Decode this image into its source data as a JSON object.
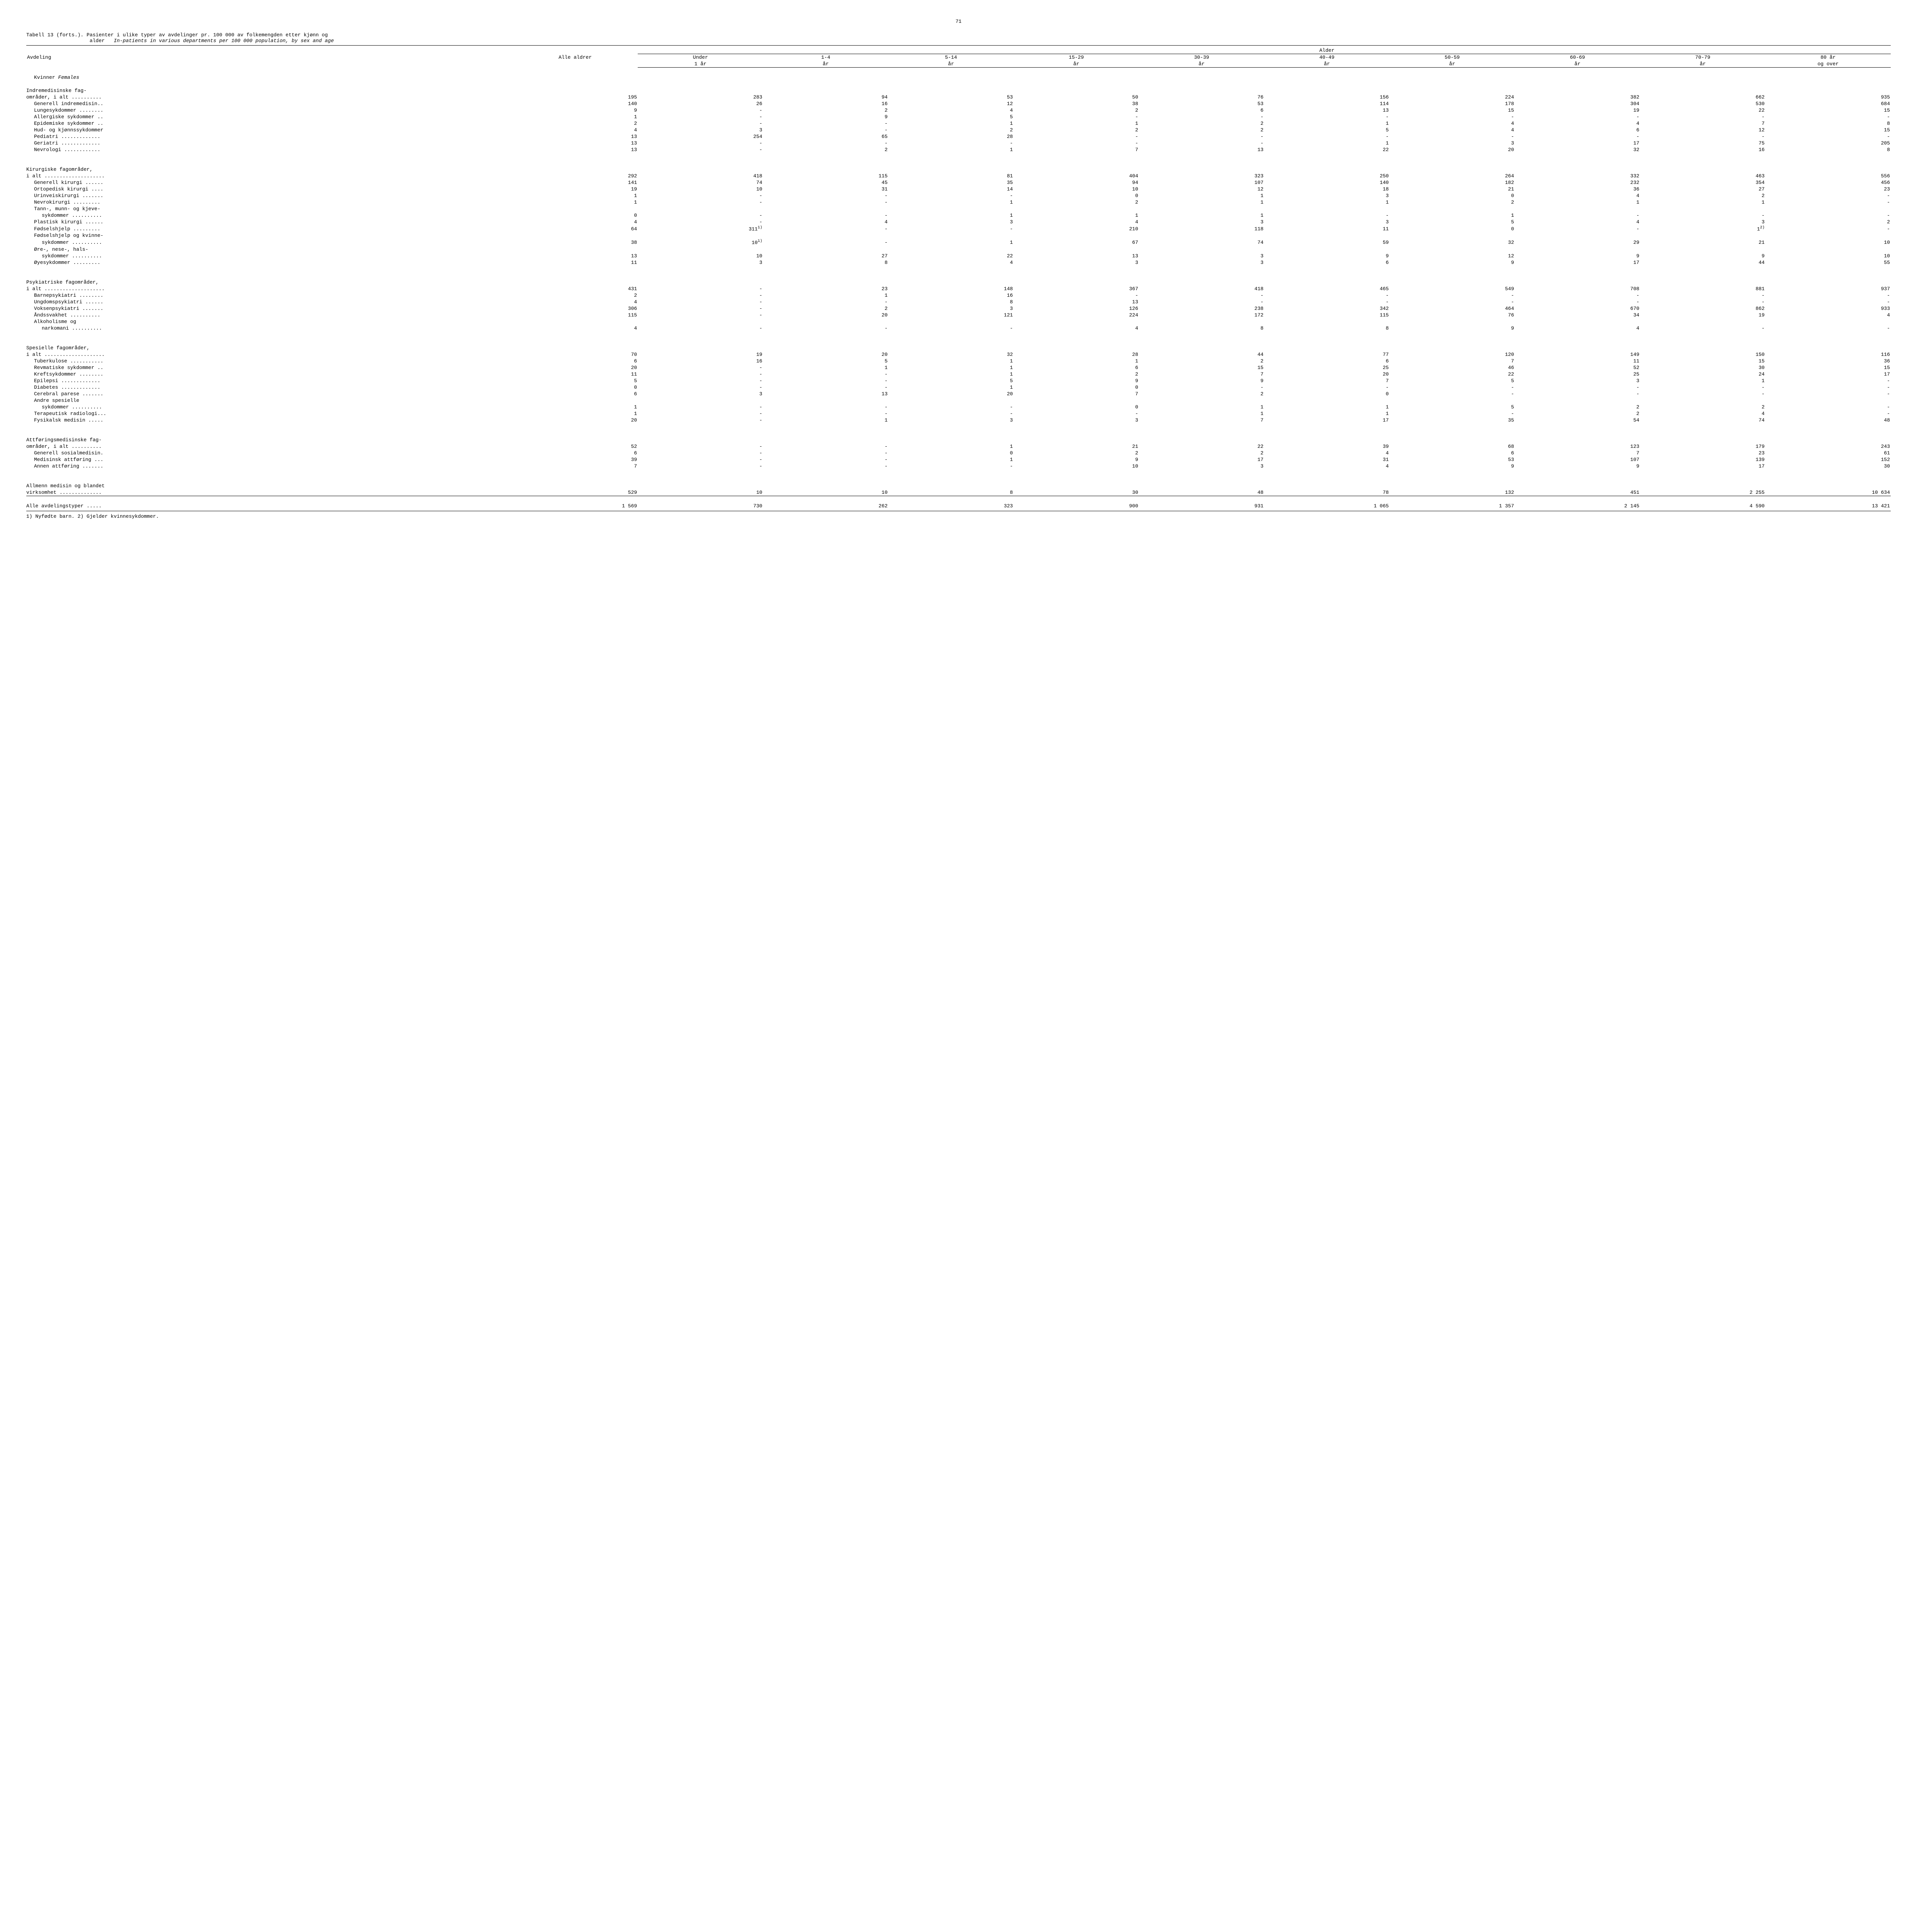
{
  "page_number": "71",
  "title_main": "Tabell 13 (forts.).  Pasienter i ulike typer av avdelinger pr. 100 000 av folkemengden etter kjønn og",
  "title_main2": "alder",
  "title_it": "In-patients in various departments per 100 000 population, by sex and age",
  "header": {
    "avdeling": "Avdeling",
    "alle_aldrer": "Alle aldrer",
    "alder": "Alder",
    "cols": [
      "Under 1 år",
      "1-4 år",
      "5-14 år",
      "15-29 år",
      "30-39 år",
      "40-49 år",
      "50-59 år",
      "60-69 år",
      "70-79 år",
      "80 år og over"
    ]
  },
  "section_female": "Kvinner",
  "section_female_it": "Females",
  "groups": [
    {
      "header_lines": [
        "Indremedisinske fag-",
        "områder, i alt .........."
      ],
      "header_values": [
        "195",
        "283",
        "94",
        "53",
        "50",
        "76",
        "156",
        "224",
        "382",
        "662",
        "935"
      ],
      "rows": [
        {
          "label": "Generell indremedisin..",
          "indent": 1,
          "v": [
            "140",
            "26",
            "16",
            "12",
            "38",
            "53",
            "114",
            "178",
            "304",
            "530",
            "684"
          ]
        },
        {
          "label": "Lungesykdommer ........",
          "indent": 1,
          "v": [
            "9",
            "-",
            "2",
            "4",
            "2",
            "6",
            "13",
            "15",
            "19",
            "22",
            "15"
          ]
        },
        {
          "label": "Allergiske sykdommer ..",
          "indent": 1,
          "v": [
            "1",
            "-",
            "9",
            "5",
            "-",
            "-",
            "-",
            "-",
            "-",
            "-",
            "-"
          ]
        },
        {
          "label": "Epidemiske sykdommer ..",
          "indent": 1,
          "v": [
            "2",
            "-",
            "-",
            "1",
            "1",
            "2",
            "1",
            "4",
            "4",
            "7",
            "8"
          ]
        },
        {
          "label": "Hud- og kjønnssykdommer",
          "indent": 1,
          "v": [
            "4",
            "3",
            "-",
            "2",
            "2",
            "2",
            "5",
            "4",
            "6",
            "12",
            "15"
          ]
        },
        {
          "label": "Pediatri .............",
          "indent": 1,
          "v": [
            "13",
            "254",
            "65",
            "28",
            "-",
            "-",
            "-",
            "-",
            "-",
            "-",
            "-"
          ]
        },
        {
          "label": "Geriatri .............",
          "indent": 1,
          "v": [
            "13",
            "-",
            "-",
            "-",
            "-",
            "-",
            "1",
            "3",
            "17",
            "75",
            "205"
          ]
        },
        {
          "label": "Nevrologi ............",
          "indent": 1,
          "v": [
            "13",
            "-",
            "2",
            "1",
            "7",
            "13",
            "22",
            "20",
            "32",
            "16",
            "8"
          ]
        }
      ]
    },
    {
      "header_lines": [
        "Kirurgiske fagområder,",
        "i alt ...................."
      ],
      "header_values": [
        "292",
        "418",
        "115",
        "81",
        "404",
        "323",
        "250",
        "264",
        "332",
        "463",
        "556"
      ],
      "rows": [
        {
          "label": "Generell kirurgi ......",
          "indent": 1,
          "v": [
            "141",
            "74",
            "45",
            "35",
            "94",
            "107",
            "140",
            "182",
            "232",
            "354",
            "456"
          ]
        },
        {
          "label": "Ortopedisk kirurgi ....",
          "indent": 1,
          "v": [
            "19",
            "10",
            "31",
            "14",
            "10",
            "12",
            "18",
            "21",
            "36",
            "27",
            "23"
          ]
        },
        {
          "label": "Urinveiskirurgi .......",
          "indent": 1,
          "v": [
            "1",
            "-",
            "-",
            "-",
            "0",
            "1",
            "3",
            "0",
            "4",
            "2",
            "-"
          ]
        },
        {
          "label": "Nevrokirurgi .........",
          "indent": 1,
          "v": [
            "1",
            "-",
            "-",
            "1",
            "2",
            "1",
            "1",
            "2",
            "1",
            "1",
            "-"
          ]
        },
        {
          "label": "Tann-, munn- og kjeve-",
          "indent": 1,
          "v": [
            "",
            "",
            "",
            "",
            "",
            "",
            "",
            "",
            "",
            "",
            ""
          ]
        },
        {
          "label": "sykdommer ..........",
          "indent": 2,
          "v": [
            "0",
            "-",
            "-",
            "1",
            "1",
            "1",
            "-",
            "1",
            "-",
            "-",
            "-"
          ]
        },
        {
          "label": "Plastisk kirurgi ......",
          "indent": 1,
          "v": [
            "4",
            "-",
            "4",
            "3",
            "4",
            "3",
            "3",
            "5",
            "4",
            "3",
            "2"
          ]
        },
        {
          "label": "Fødselshjelp .........",
          "indent": 1,
          "v": [
            "64",
            "311",
            "-",
            "-",
            "210",
            "118",
            "11",
            "0",
            "-",
            "1",
            "-"
          ],
          "sup": {
            "1": "1)",
            "9": "2)"
          }
        },
        {
          "label": "Fødselshjelp og kvinne-",
          "indent": 1,
          "v": [
            "",
            "",
            "",
            "",
            "",
            "",
            "",
            "",
            "",
            "",
            ""
          ]
        },
        {
          "label": "sykdommer ..........",
          "indent": 2,
          "v": [
            "38",
            "10",
            "-",
            "1",
            "67",
            "74",
            "59",
            "32",
            "29",
            "21",
            "10"
          ],
          "sup": {
            "1": "1)"
          }
        },
        {
          "label": "Øre-, nese-, hals-",
          "indent": 1,
          "v": [
            "",
            "",
            "",
            "",
            "",
            "",
            "",
            "",
            "",
            "",
            ""
          ]
        },
        {
          "label": "sykdommer ..........",
          "indent": 2,
          "v": [
            "13",
            "10",
            "27",
            "22",
            "13",
            "3",
            "9",
            "12",
            "9",
            "9",
            "10"
          ]
        },
        {
          "label": "Øyesykdommer .........",
          "indent": 1,
          "v": [
            "11",
            "3",
            "8",
            "4",
            "3",
            "3",
            "6",
            "9",
            "17",
            "44",
            "55"
          ]
        }
      ]
    },
    {
      "header_lines": [
        "Psykiatriske fagområder,",
        "i alt ...................."
      ],
      "header_values": [
        "431",
        "-",
        "23",
        "148",
        "367",
        "418",
        "465",
        "549",
        "708",
        "881",
        "937"
      ],
      "rows": [
        {
          "label": "Barnepsykiatri ........",
          "indent": 1,
          "v": [
            "2",
            "-",
            "1",
            "16",
            "-",
            "-",
            "-",
            "-",
            "-",
            "-",
            "-"
          ]
        },
        {
          "label": "Ungdomspsykiatri ......",
          "indent": 1,
          "v": [
            "4",
            "-",
            "-",
            "8",
            "13",
            "-",
            "-",
            "-",
            "-",
            "-",
            "-"
          ]
        },
        {
          "label": "Voksenpsykiatri .......",
          "indent": 1,
          "v": [
            "306",
            "-",
            "2",
            "3",
            "126",
            "238",
            "342",
            "464",
            "670",
            "862",
            "933"
          ]
        },
        {
          "label": "Åndssvakhet ..........",
          "indent": 1,
          "v": [
            "115",
            "-",
            "20",
            "121",
            "224",
            "172",
            "115",
            "76",
            "34",
            "19",
            "4"
          ]
        },
        {
          "label": "Alkoholisme og",
          "indent": 1,
          "v": [
            "",
            "",
            "",
            "",
            "",
            "",
            "",
            "",
            "",
            "",
            ""
          ]
        },
        {
          "label": "narkomani ..........",
          "indent": 2,
          "v": [
            "4",
            "-",
            "-",
            "-",
            "4",
            "8",
            "8",
            "9",
            "4",
            "-",
            "-"
          ]
        }
      ]
    },
    {
      "header_lines": [
        "Spesielle fagområder,",
        "i alt ...................."
      ],
      "header_values": [
        "70",
        "19",
        "20",
        "32",
        "28",
        "44",
        "77",
        "120",
        "149",
        "150",
        "116"
      ],
      "rows": [
        {
          "label": "Tuberkulose ...........",
          "indent": 1,
          "v": [
            "6",
            "16",
            "5",
            "1",
            "1",
            "2",
            "6",
            "7",
            "11",
            "15",
            "36"
          ]
        },
        {
          "label": "Revmatiske sykdommer ..",
          "indent": 1,
          "v": [
            "20",
            "-",
            "1",
            "1",
            "6",
            "15",
            "25",
            "46",
            "52",
            "30",
            "15"
          ]
        },
        {
          "label": "Kreftsykdommer ........",
          "indent": 1,
          "v": [
            "11",
            "-",
            "-",
            "1",
            "2",
            "7",
            "20",
            "22",
            "25",
            "24",
            "17"
          ]
        },
        {
          "label": "Epilepsi .............",
          "indent": 1,
          "v": [
            "5",
            "-",
            "-",
            "5",
            "9",
            "9",
            "7",
            "5",
            "3",
            "1",
            "-"
          ]
        },
        {
          "label": "Diabetes .............",
          "indent": 1,
          "v": [
            "0",
            "-",
            "-",
            "1",
            "0",
            "-",
            "-",
            "-",
            "-",
            "-",
            "-"
          ]
        },
        {
          "label": "Cerebral parese .......",
          "indent": 1,
          "v": [
            "6",
            "3",
            "13",
            "20",
            "7",
            "2",
            "0",
            "-",
            "-",
            "-",
            "-"
          ]
        },
        {
          "label": "Andre spesielle",
          "indent": 1,
          "v": [
            "",
            "",
            "",
            "",
            "",
            "",
            "",
            "",
            "",
            "",
            ""
          ]
        },
        {
          "label": "sykdommer ..........",
          "indent": 2,
          "v": [
            "1",
            "-",
            "-",
            "-",
            "0",
            "1",
            "1",
            "5",
            "2",
            "2",
            "-"
          ]
        },
        {
          "label": "Terapeutisk radiologi...",
          "indent": 1,
          "v": [
            "1",
            "-",
            "-",
            "-",
            "-",
            "1",
            "1",
            "-",
            "2",
            "4",
            "-"
          ]
        },
        {
          "label": "Fysikalsk medisin .....",
          "indent": 1,
          "v": [
            "20",
            "-",
            "1",
            "3",
            "3",
            "7",
            "17",
            "35",
            "54",
            "74",
            "48"
          ]
        }
      ]
    },
    {
      "header_lines": [
        "Attføringsmedisinske fag-",
        "områder, i alt .........."
      ],
      "header_values": [
        "52",
        "-",
        "-",
        "1",
        "21",
        "22",
        "39",
        "68",
        "123",
        "179",
        "243"
      ],
      "rows": [
        {
          "label": "Generell sosialmedisin.",
          "indent": 1,
          "v": [
            "6",
            "-",
            "-",
            "0",
            "2",
            "2",
            "4",
            "6",
            "7",
            "23",
            "61"
          ]
        },
        {
          "label": "Medisinsk attføring ...",
          "indent": 1,
          "v": [
            "39",
            "-",
            "-",
            "1",
            "9",
            "17",
            "31",
            "53",
            "107",
            "139",
            "152"
          ]
        },
        {
          "label": "Annen attføring .......",
          "indent": 1,
          "v": [
            "7",
            "-",
            "-",
            "-",
            "10",
            "3",
            "4",
            "9",
            "9",
            "17",
            "30"
          ]
        }
      ]
    }
  ],
  "allmenn": {
    "lines": [
      "Allmenn medisin og blandet",
      "virksomhet .............."
    ],
    "v": [
      "529",
      "10",
      "10",
      "8",
      "30",
      "48",
      "78",
      "132",
      "451",
      "2 255",
      "10 634"
    ]
  },
  "total_row": {
    "label": "Alle avdelingstyper .....",
    "v": [
      "1 569",
      "730",
      "262",
      "323",
      "900",
      "931",
      "1 065",
      "1 357",
      "2 145",
      "4 590",
      "13 421"
    ]
  },
  "footnotes": "1) Nyfødte barn.  2) Gjelder kvinnesykdommer."
}
